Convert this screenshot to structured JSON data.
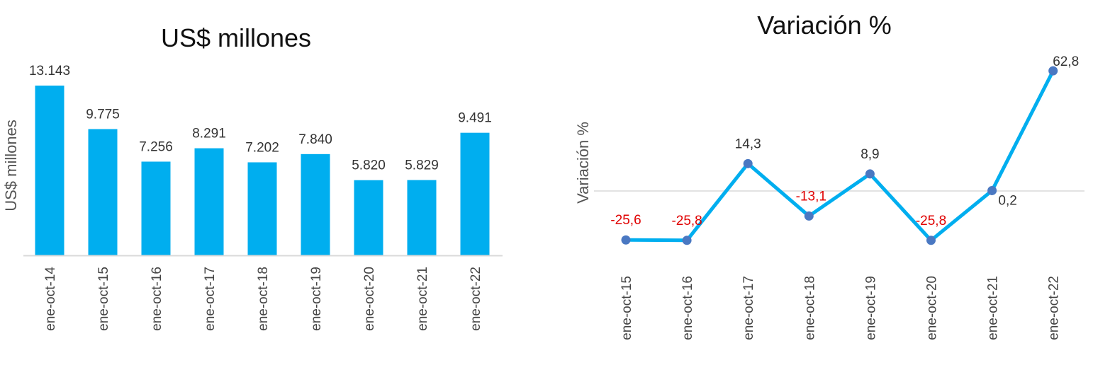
{
  "chart_data": [
    {
      "type": "bar",
      "title": "US$ millones",
      "ylabel": "US$ millones",
      "xlabel": "",
      "categories": [
        "ene-oct-14",
        "ene-oct-15",
        "ene-oct-16",
        "ene-oct-17",
        "ene-oct-18",
        "ene-oct-19",
        "ene-oct-20",
        "ene-oct-21",
        "ene-oct-22"
      ],
      "values": [
        13143,
        9775,
        7256,
        8291,
        7202,
        7840,
        5820,
        5829,
        9491
      ],
      "data_labels": [
        "13.143",
        "9.775",
        "7.256",
        "8.291",
        "7.202",
        "7.840",
        "5.820",
        "5.829",
        "9.491"
      ],
      "ylim": [
        0,
        13143
      ],
      "grid": false,
      "colors": {
        "bar": "#00aeef",
        "axis": "#d9d9d9"
      }
    },
    {
      "type": "line",
      "title": "Variación %",
      "ylabel": "Variación %",
      "xlabel": "",
      "categories": [
        "ene-oct-15",
        "ene-oct-16",
        "ene-oct-17",
        "ene-oct-18",
        "ene-oct-19",
        "ene-oct-20",
        "ene-oct-21",
        "ene-oct-22"
      ],
      "values": [
        -25.6,
        -25.8,
        14.3,
        -13.1,
        8.9,
        -25.8,
        0.2,
        62.8
      ],
      "data_labels": [
        "-25,6",
        "-25,8",
        "14,3",
        "-13,1",
        "8,9",
        "-25,8",
        "0,2",
        "62,8"
      ],
      "ylim": [
        -35,
        75
      ],
      "grid": false,
      "zero_line": true,
      "colors": {
        "line": "#00aeef",
        "marker": "#4a78c2",
        "negative_label": "#e00000",
        "zero_line": "#d9d9d9"
      }
    }
  ]
}
